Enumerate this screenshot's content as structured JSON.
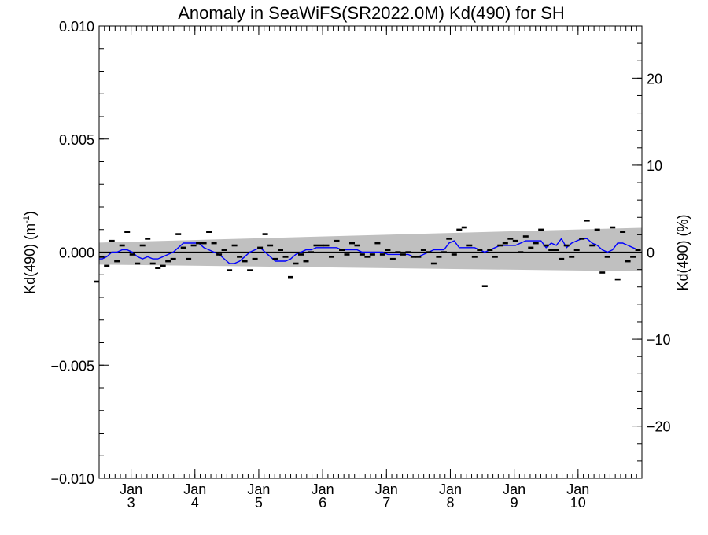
{
  "chart_data": {
    "type": "scatter",
    "title": "Anomaly in SeaWiFS(SR2022.0M) Kd(490) for SH",
    "ylabel_left": "Kd(490) (m",
    "ylabel_left_sup": "-1",
    "ylabel_left_close": ")",
    "ylabel_right": "Kd(490) (%)",
    "ylim_left": [
      -0.01,
      0.01
    ],
    "ylim_right": [
      -26,
      26
    ],
    "xlim": [
      2.5,
      11.0
    ],
    "y_ticks_left": [
      {
        "value": -0.01,
        "label": "−0.010"
      },
      {
        "value": -0.005,
        "label": "−0.005"
      },
      {
        "value": 0.0,
        "label": "0.000"
      },
      {
        "value": 0.005,
        "label": "0.005"
      },
      {
        "value": 0.01,
        "label": "0.010"
      }
    ],
    "y_ticks_right": [
      {
        "value": -20,
        "label": "−20"
      },
      {
        "value": -10,
        "label": "−10"
      },
      {
        "value": 0,
        "label": "0"
      },
      {
        "value": 10,
        "label": "10"
      },
      {
        "value": 20,
        "label": "20"
      }
    ],
    "x_ticks": [
      {
        "value": 3,
        "month": "Jan",
        "year": "3"
      },
      {
        "value": 4,
        "month": "Jan",
        "year": "4"
      },
      {
        "value": 5,
        "month": "Jan",
        "year": "5"
      },
      {
        "value": 6,
        "month": "Jan",
        "year": "6"
      },
      {
        "value": 7,
        "month": "Jan",
        "year": "7"
      },
      {
        "value": 8,
        "month": "Jan",
        "year": "8"
      },
      {
        "value": 9,
        "month": "Jan",
        "year": "9"
      },
      {
        "value": 10,
        "month": "Jan",
        "year": "10"
      }
    ],
    "uncertainty_band": {
      "x": [
        2.5,
        11.0
      ],
      "lower": [
        -0.00055,
        -0.00085
      ],
      "upper": [
        0.00042,
        0.00108
      ],
      "color": "#c0c0c0"
    },
    "anomaly_points": {
      "x": [
        2.46,
        2.54,
        2.62,
        2.7,
        2.78,
        2.86,
        2.94,
        3.02,
        3.1,
        3.18,
        3.26,
        3.34,
        3.42,
        3.5,
        3.58,
        3.66,
        3.74,
        3.82,
        3.9,
        3.98,
        4.06,
        4.14,
        4.22,
        4.3,
        4.38,
        4.46,
        4.54,
        4.62,
        4.7,
        4.78,
        4.86,
        4.94,
        5.02,
        5.1,
        5.18,
        5.26,
        5.34,
        5.42,
        5.5,
        5.58,
        5.66,
        5.74,
        5.82,
        5.9,
        5.98,
        6.06,
        6.14,
        6.22,
        6.3,
        6.38,
        6.46,
        6.54,
        6.62,
        6.7,
        6.78,
        6.86,
        6.94,
        7.02,
        7.1,
        7.18,
        7.26,
        7.34,
        7.42,
        7.5,
        7.58,
        7.66,
        7.74,
        7.82,
        7.9,
        7.98,
        8.06,
        8.14,
        8.22,
        8.3,
        8.38,
        8.46,
        8.54,
        8.62,
        8.7,
        8.78,
        8.86,
        8.94,
        9.02,
        9.1,
        9.18,
        9.26,
        9.34,
        9.42,
        9.5,
        9.58,
        9.66,
        9.74,
        9.82,
        9.9,
        9.98,
        10.06,
        10.14,
        10.22,
        10.3,
        10.38,
        10.46,
        10.54,
        10.62,
        10.7,
        10.78,
        10.86,
        10.94
      ],
      "y": [
        -0.0013,
        -0.0002,
        -0.0006,
        0.0005,
        -0.0004,
        0.0003,
        0.0009,
        -0.0001,
        -0.0005,
        0.0003,
        0.0006,
        -0.0005,
        -0.0007,
        -0.0006,
        -0.0004,
        -0.0003,
        0.0008,
        0.0002,
        -0.0003,
        0.0003,
        0.0004,
        0.0004,
        0.0009,
        0.0004,
        -0.0001,
        0.0001,
        -0.0008,
        0.0003,
        -0.0002,
        -0.0004,
        -0.0008,
        -0.0003,
        0.0002,
        0.0008,
        0.0003,
        -0.0003,
        0.0001,
        -0.0002,
        -0.0011,
        -0.0005,
        -0.0001,
        -0.0004,
        0.0,
        0.0003,
        0.0003,
        0.0003,
        -0.0002,
        0.0005,
        0.0001,
        -0.0001,
        0.0004,
        0.0003,
        -0.0001,
        -0.0002,
        -0.0001,
        0.0004,
        -0.0001,
        0.0001,
        -0.0003,
        0.0,
        -0.0001,
        0.0,
        -0.0002,
        -0.0002,
        0.0001,
        0.0,
        -0.0005,
        -0.0002,
        0.0,
        0.0006,
        -0.0001,
        0.001,
        0.0011,
        0.0003,
        -0.0002,
        0.0001,
        -0.0015,
        0.0001,
        -0.0002,
        0.0003,
        0.0004,
        0.0006,
        0.0005,
        0.0,
        0.0007,
        0.0002,
        0.0004,
        0.001,
        0.0003,
        0.0001,
        0.0001,
        -0.0003,
        0.0003,
        -0.0002,
        0.0001,
        0.0006,
        0.0014,
        0.0003,
        0.001,
        -0.0009,
        -0.0002,
        0.0011,
        -0.0012,
        0.0009,
        -0.0004,
        -0.0002,
        0.0001
      ]
    },
    "smoothed_series": {
      "name": "",
      "color": "#0000ff",
      "x": [
        2.46,
        2.55,
        2.62,
        2.7,
        2.78,
        2.86,
        2.94,
        3.02,
        3.1,
        3.18,
        3.26,
        3.34,
        3.42,
        3.5,
        3.58,
        3.66,
        3.74,
        3.82,
        3.9,
        3.98,
        4.06,
        4.14,
        4.22,
        4.3,
        4.38,
        4.46,
        4.54,
        4.62,
        4.7,
        4.78,
        4.86,
        4.94,
        5.02,
        5.1,
        5.18,
        5.26,
        5.34,
        5.42,
        5.5,
        5.58,
        5.66,
        5.74,
        5.82,
        5.9,
        5.98,
        6.06,
        6.14,
        6.22,
        6.3,
        6.38,
        6.46,
        6.54,
        6.62,
        6.7,
        6.78,
        6.86,
        6.94,
        7.02,
        7.1,
        7.18,
        7.26,
        7.34,
        7.42,
        7.5,
        7.58,
        7.66,
        7.74,
        7.82,
        7.9,
        7.98,
        8.06,
        8.14,
        8.22,
        8.3,
        8.38,
        8.46,
        8.54,
        8.62,
        8.7,
        8.78,
        8.86,
        8.94,
        9.02,
        9.1,
        9.18,
        9.26,
        9.34,
        9.42,
        9.5,
        9.58,
        9.66,
        9.74,
        9.82,
        9.9,
        9.98,
        10.06,
        10.14,
        10.22,
        10.3,
        10.38,
        10.46,
        10.54,
        10.62,
        10.7,
        10.78,
        10.86,
        10.94
      ],
      "y": [
        -0.0003,
        -0.0003,
        -0.0002,
        0.0,
        0.0,
        0.0001,
        0.0001,
        0.0,
        -0.0002,
        -0.0003,
        -0.0002,
        -0.0003,
        -0.0003,
        -0.0002,
        -0.0001,
        0.0,
        0.0002,
        0.0004,
        0.0004,
        0.0004,
        0.0004,
        0.0002,
        0.0001,
        0.0,
        -0.0001,
        -0.0003,
        -0.0005,
        -0.0005,
        -0.0004,
        -0.0002,
        0.0,
        0.0001,
        0.0002,
        0.0,
        -0.0002,
        -0.0004,
        -0.0004,
        -0.0004,
        -0.0003,
        -0.0001,
        0.0,
        0.0001,
        0.0001,
        0.0002,
        0.0002,
        0.0002,
        0.0002,
        0.0002,
        0.0001,
        0.0001,
        0.0001,
        0.0001,
        0.0,
        0.0,
        0.0,
        0.0,
        0.0,
        -0.0001,
        -0.0001,
        -0.0001,
        -0.0001,
        -0.0001,
        -0.0002,
        -0.0002,
        -0.0001,
        0.0,
        0.0001,
        0.0001,
        0.0001,
        0.0004,
        0.0005,
        0.0002,
        0.0002,
        0.0002,
        0.0002,
        0.0001,
        0.0,
        0.0001,
        0.0002,
        0.0003,
        0.0003,
        0.0003,
        0.0003,
        0.0004,
        0.0005,
        0.0005,
        0.0005,
        0.0005,
        0.0002,
        0.0004,
        0.0003,
        0.0006,
        0.0002,
        0.0004,
        0.0005,
        0.0006,
        0.0006,
        0.0004,
        0.0003,
        0.0001,
        0.0,
        0.0001,
        0.0004,
        0.0004,
        0.0003,
        0.0002,
        0.0001
      ]
    },
    "zero_line": 0.0,
    "grid": false
  }
}
